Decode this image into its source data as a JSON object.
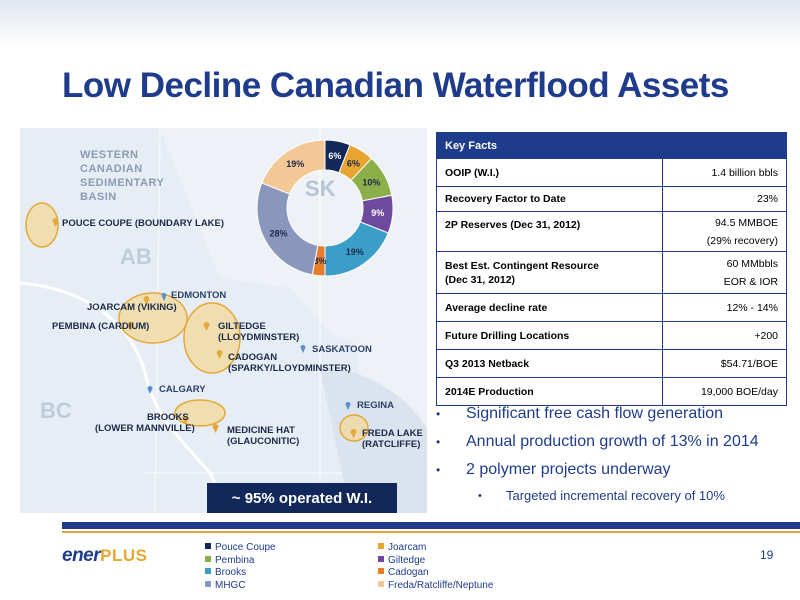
{
  "slide": {
    "title": "Low Decline Canadian Waterflood Assets",
    "page_number": "19"
  },
  "map": {
    "region_label": [
      "WESTERN",
      "CANADIAN",
      "SEDIMENTARY",
      "BASIN"
    ],
    "provinces": {
      "ab": "AB",
      "bc": "BC",
      "sk": "SK"
    },
    "assets": {
      "pouce_coupe": "POUCE COUPE (BOUNDARY LAKE)",
      "joarcam": "JOARCAM (VIKING)",
      "pembina": "PEMBINA (CARDIUM)",
      "giltedge": [
        "GILTEDGE",
        "(LLOYDMINSTER)"
      ],
      "cadogan": [
        "CADOGAN",
        "(SPARKY/LLOYDMINSTER)"
      ],
      "brooks": [
        "BROOKS",
        "(LOWER MANNVILLE)"
      ],
      "medicine_hat": [
        "MEDICINE HAT",
        "(GLAUCONITIC)"
      ],
      "freda_lake": [
        "FREDA LAKE",
        "(RATCLIFFE)"
      ]
    },
    "cities": {
      "edmonton": "EDMONTON",
      "saskatoon": "SASKATOON",
      "calgary": "CALGARY",
      "regina": "REGINA"
    },
    "operated_label": "~ 95% operated W.I.",
    "colors": {
      "navy": "#13285a",
      "asset_fill": "#f3d89a",
      "asset_stroke": "#e3a93a"
    }
  },
  "chart_data": {
    "type": "pie",
    "donut": true,
    "categories": [
      "Pouce Coupe",
      "Joarcam",
      "Pembina",
      "Giltedge",
      "Brooks",
      "Cadogan",
      "MHGC",
      "Freda/Ratcliffe/Neptune"
    ],
    "values": [
      6,
      6,
      10,
      9,
      19,
      3,
      28,
      19
    ],
    "labels": [
      "6%",
      "6%",
      "10%",
      "9%",
      "19%",
      "3%",
      "28%",
      "19%"
    ],
    "colors": [
      "#13285a",
      "#e8a532",
      "#8bb04a",
      "#6e4a9e",
      "#3a9ec8",
      "#e87c2a",
      "#8a97bd",
      "#f3c896"
    ]
  },
  "key_facts": {
    "header": "Key Facts",
    "rows": [
      {
        "label": "OOIP (W.I.)",
        "value": "1.4 billion bbls"
      },
      {
        "label": "Recovery Factor to Date",
        "value": "23%"
      },
      {
        "label": "2P Reserves (Dec 31, 2012)",
        "value": "94.5 MMBOE",
        "value2": "(29% recovery)"
      },
      {
        "label": "Best Est. Contingent Resource",
        "label2": "(Dec 31, 2012)",
        "value": "60 MMbbls",
        "value2": "EOR & IOR"
      },
      {
        "label": "Average  decline rate",
        "value": "12% - 14%"
      },
      {
        "label": "Future Drilling Locations",
        "value": "+200"
      },
      {
        "label": "Q3 2013 Netback",
        "value": "$54.71/BOE"
      },
      {
        "label": "2014E Production",
        "value": "19,000 BOE/day"
      }
    ]
  },
  "bullets": [
    "Significant free cash flow generation",
    "Annual production growth of 13% in 2014",
    "2 polymer projects underway"
  ],
  "sub_bullet": "Targeted incremental recovery of 10%",
  "bullet_glyph": "•",
  "logo": {
    "ener": "ener",
    "plus": "PLUS"
  },
  "legend": [
    {
      "label": "Pouce Coupe",
      "color": "#13285a"
    },
    {
      "label": "Joarcam",
      "color": "#e8a532"
    },
    {
      "label": "Pembina",
      "color": "#8bb04a"
    },
    {
      "label": "Giltedge",
      "color": "#6e4a9e"
    },
    {
      "label": "Brooks",
      "color": "#3a9ec8"
    },
    {
      "label": "Cadogan",
      "color": "#e87c2a"
    },
    {
      "label": "MHGC",
      "color": "#8a97bd"
    },
    {
      "label": "Freda/Ratcliffe/Neptune",
      "color": "#f3c896"
    }
  ]
}
